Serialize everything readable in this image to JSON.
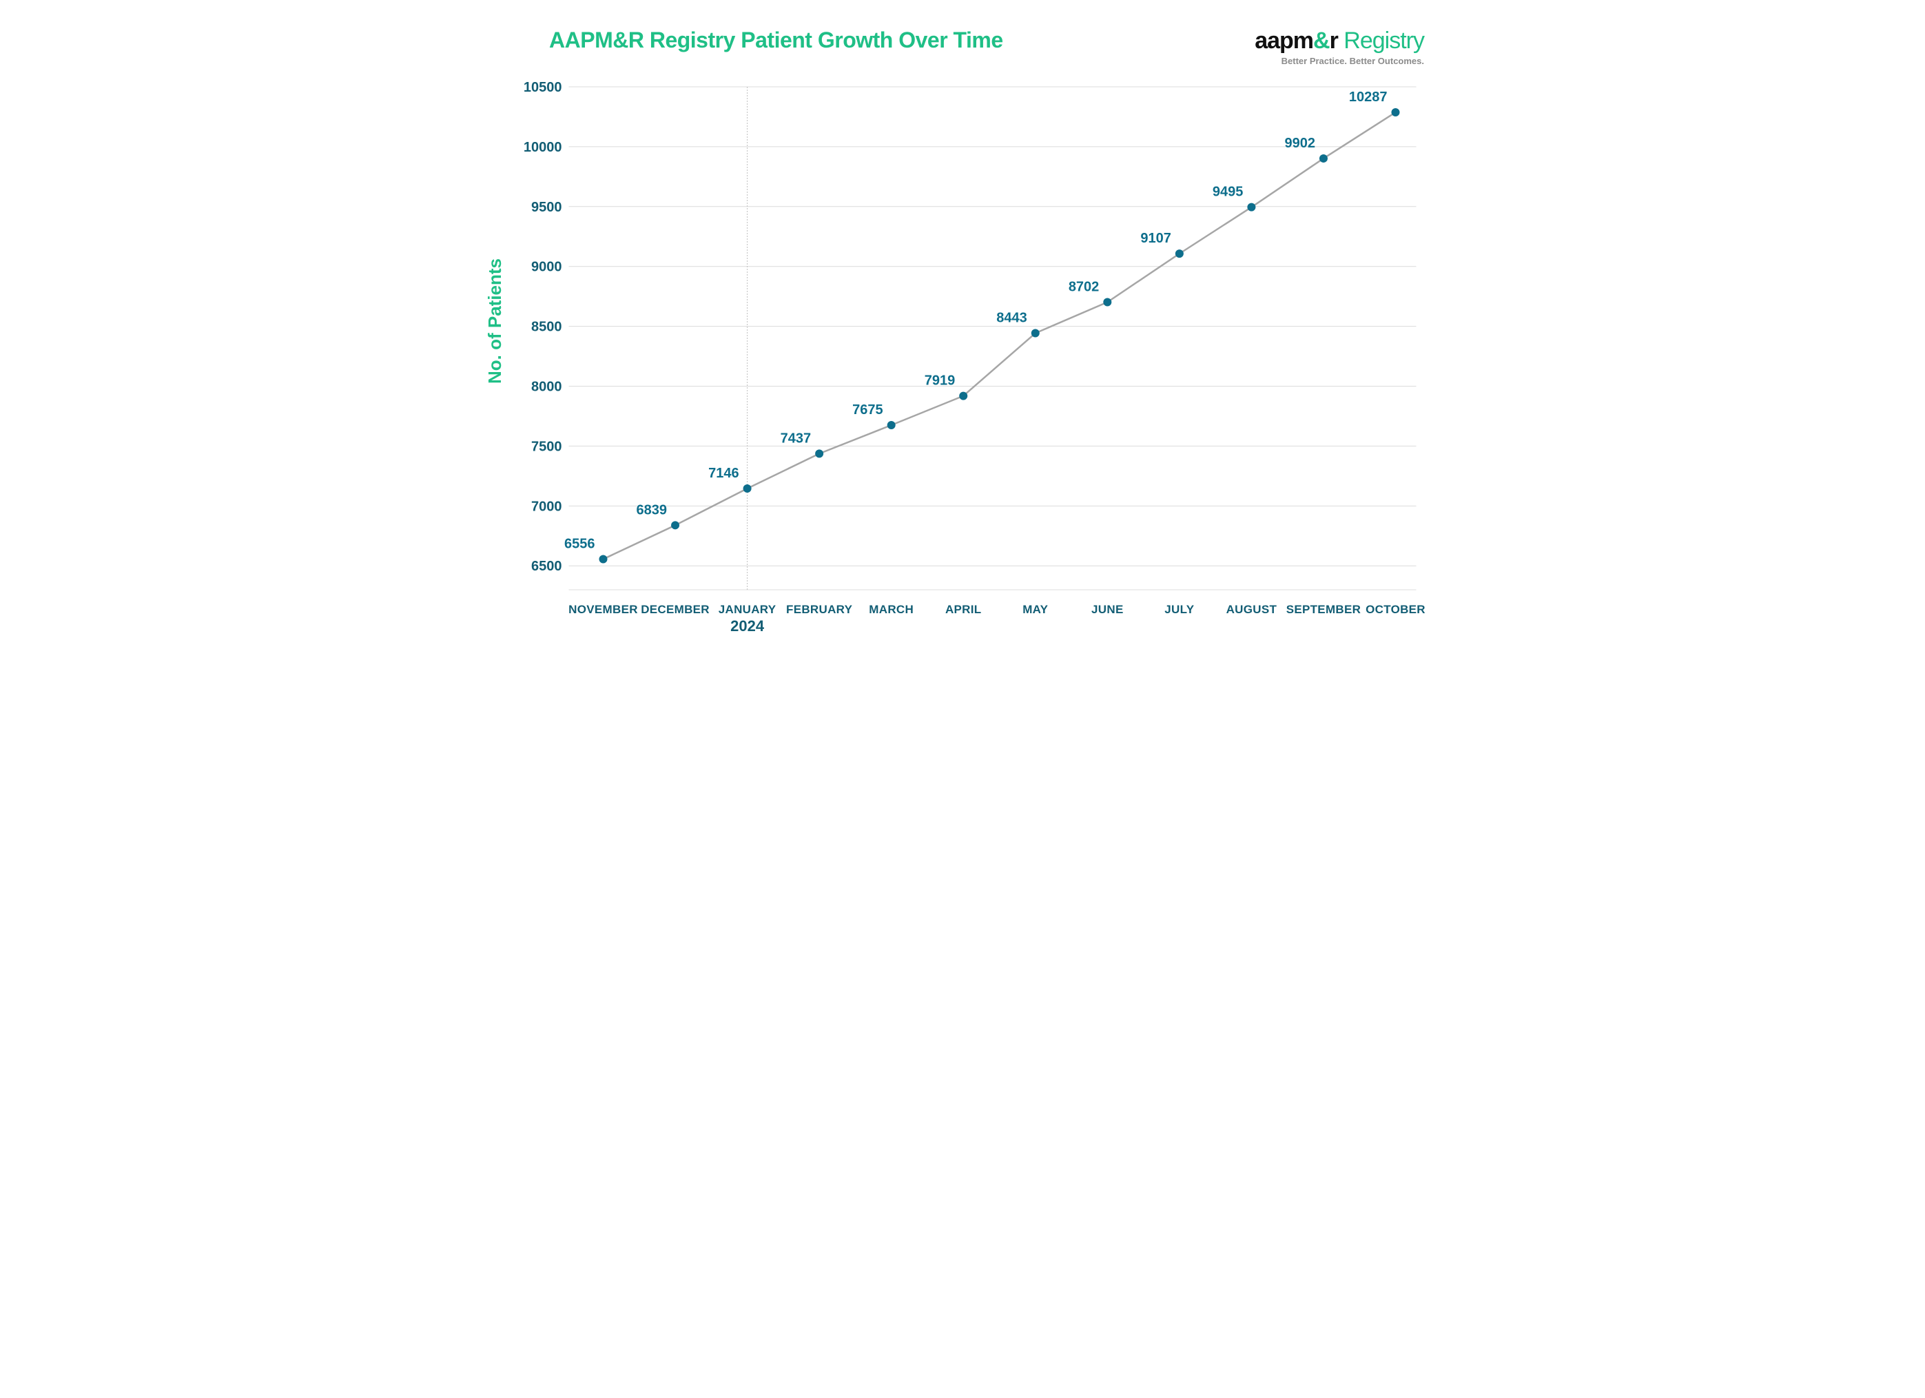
{
  "colors": {
    "green": "#1fbf86",
    "teal": "#0d6e8c",
    "teal_dark": "#125d74",
    "black": "#111111",
    "grey_text": "#8b8b8b",
    "grid": "#dcdcdc",
    "line": "#a6a6a6",
    "bg": "#ffffff"
  },
  "header": {
    "title": "AAPM&R Registry Patient Growth Over Time",
    "logo_aapm": "aapm",
    "logo_amp": "&",
    "logo_r": "r",
    "logo_registry": "Registry",
    "tagline": "Better Practice. Better Outcomes."
  },
  "chart": {
    "type": "line",
    "yaxis_title": "No. of Patients",
    "ylim": [
      6300,
      10500
    ],
    "yticks": [
      6500,
      7000,
      7500,
      8000,
      8500,
      9000,
      9500,
      10000,
      10500
    ],
    "x_categories": [
      "NOVEMBER",
      "DECEMBER",
      "JANUARY",
      "FEBRUARY",
      "MARCH",
      "APRIL",
      "MAY",
      "JUNE",
      "JULY",
      "AUGUST",
      "SEPTEMBER",
      "OCTOBER"
    ],
    "values": [
      6556,
      6839,
      7146,
      7437,
      7675,
      7919,
      8443,
      8702,
      9107,
      9495,
      9902,
      10287
    ],
    "year_marker": {
      "index": 2,
      "label": "2024"
    },
    "marker_radius": 6,
    "line_width": 2.5,
    "label_fontsize": 20,
    "tick_fontsize": 20,
    "xtick_fontsize": 17,
    "marker_color": "#0d6e8c",
    "label_color": "#0d6e8c",
    "line_color": "#a6a6a6",
    "grid_color": "#dcdcdc"
  }
}
